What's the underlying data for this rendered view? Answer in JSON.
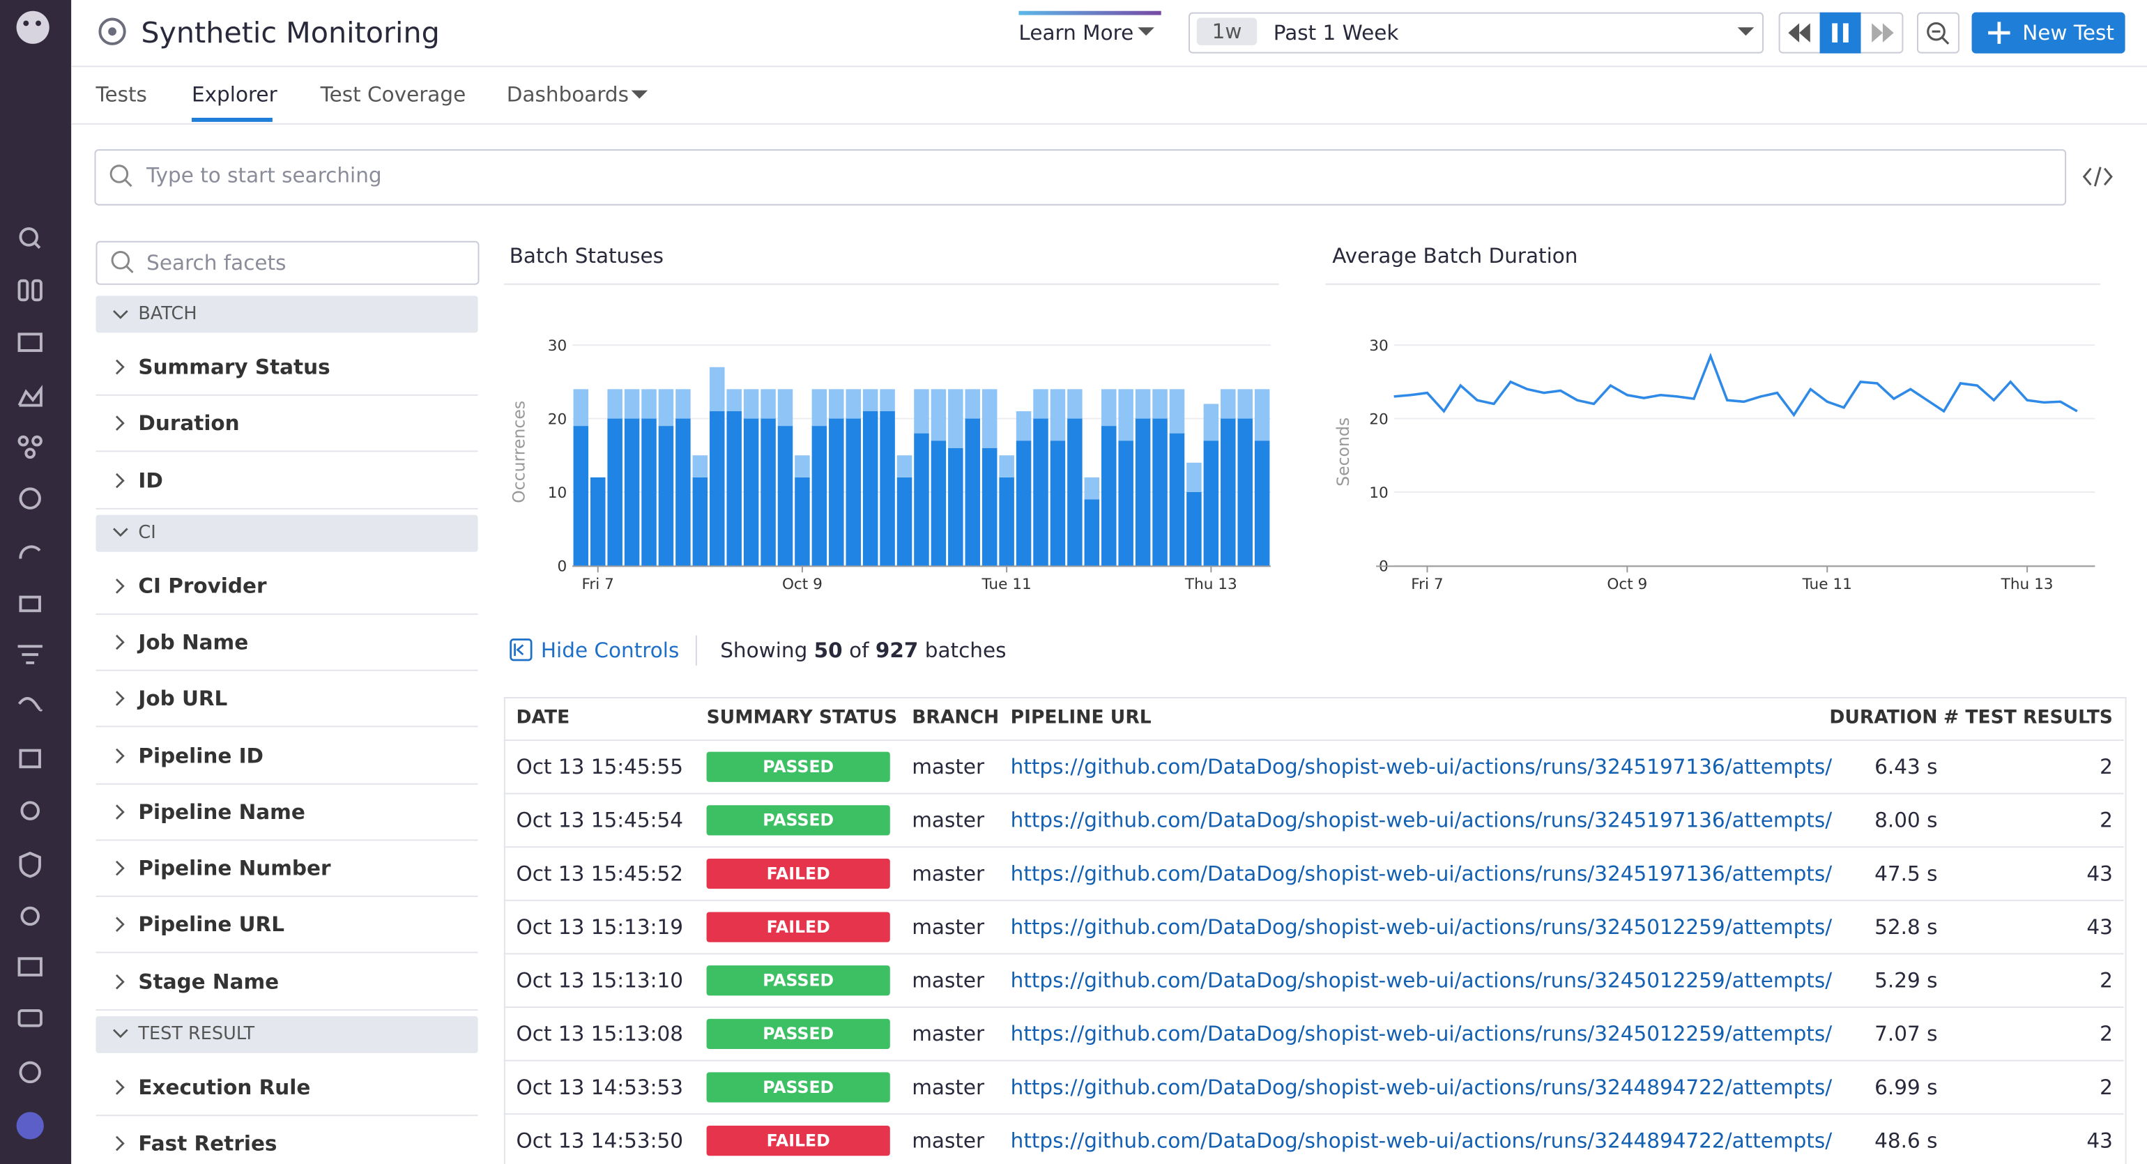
{
  "header": {
    "title": "Synthetic Monitoring",
    "learn_more": "Learn More",
    "time_short": "1w",
    "time_range": "Past 1 Week",
    "new_test": "New Test"
  },
  "tabs": [
    "Tests",
    "Explorer",
    "Test Coverage",
    "Dashboards"
  ],
  "search": {
    "placeholder": "Type to start searching"
  },
  "facets": {
    "placeholder": "Search facets",
    "groups": [
      {
        "name": "BATCH",
        "items": [
          "Summary Status",
          "Duration",
          "ID"
        ]
      },
      {
        "name": "CI",
        "items": [
          "CI Provider",
          "Job Name",
          "Job URL",
          "Pipeline ID",
          "Pipeline Name",
          "Pipeline Number",
          "Pipeline URL",
          "Stage Name"
        ]
      },
      {
        "name": "TEST RESULT",
        "items": [
          "Execution Rule",
          "Fast Retries"
        ]
      }
    ]
  },
  "chart_data": [
    {
      "type": "bar",
      "stacked": true,
      "title": "Batch Statuses",
      "y_label": "Occurrences",
      "categories": [
        null,
        "Fri 7",
        null,
        null,
        null,
        null,
        null,
        null,
        null,
        null,
        null,
        null,
        null,
        "Oct 9",
        null,
        null,
        null,
        null,
        null,
        null,
        null,
        null,
        null,
        null,
        null,
        "Tue 11",
        null,
        null,
        null,
        null,
        null,
        null,
        null,
        null,
        null,
        null,
        null,
        "Thu 13",
        null,
        null,
        null
      ],
      "series": [
        {
          "color": "#1f84e3",
          "values": [
            19,
            12,
            20,
            20,
            20,
            19,
            20,
            12,
            21,
            21,
            20,
            20,
            19,
            12,
            19,
            20,
            20,
            21,
            21,
            12,
            18,
            17,
            16,
            20,
            16,
            12,
            17,
            20,
            17,
            20,
            9,
            19,
            17,
            20,
            20,
            18,
            10,
            17,
            20,
            20,
            17
          ]
        },
        {
          "color": "#8ec5f6",
          "values": [
            5,
            0,
            4,
            4,
            4,
            5,
            4,
            3,
            6,
            3,
            4,
            4,
            5,
            3,
            5,
            4,
            4,
            3,
            3,
            3,
            6,
            7,
            8,
            4,
            8,
            3,
            4,
            4,
            7,
            4,
            3,
            5,
            7,
            4,
            4,
            6,
            4,
            5,
            4,
            4,
            7
          ]
        }
      ],
      "ylim": [
        0,
        30
      ],
      "yticks": [
        0,
        10,
        20,
        30
      ],
      "grid": true
    },
    {
      "type": "line",
      "title": "Average Batch Duration",
      "y_label": "Seconds",
      "categories": [
        null,
        null,
        "Fri 7",
        null,
        null,
        null,
        null,
        null,
        null,
        null,
        null,
        null,
        null,
        null,
        "Oct 9",
        null,
        null,
        null,
        null,
        null,
        null,
        null,
        null,
        null,
        null,
        null,
        "Tue 11",
        null,
        null,
        null,
        null,
        null,
        null,
        null,
        null,
        null,
        null,
        null,
        "Thu 13",
        null,
        null,
        null
      ],
      "series": [
        {
          "color": "#2e8ae6",
          "values": [
            23,
            23.2,
            23.5,
            21,
            24.5,
            22.5,
            22,
            25,
            24,
            23.5,
            23.8,
            22.5,
            22,
            24.5,
            23.2,
            22.8,
            23.2,
            23,
            22.7,
            28.5,
            22.5,
            22.3,
            23,
            23.5,
            20.5,
            24,
            22.3,
            21.5,
            25,
            24.8,
            22.7,
            24,
            22.5,
            21,
            24.8,
            24.5,
            22.5,
            25,
            22.5,
            22.2,
            22.3,
            21
          ]
        }
      ],
      "ylim": [
        0,
        30
      ],
      "yticks": [
        0,
        10,
        20,
        30
      ],
      "grid": true
    }
  ],
  "controls": {
    "hide": "Hide Controls",
    "showing": "Showing",
    "shown": 50,
    "of": "of",
    "total": 927,
    "unit": "batches"
  },
  "table": {
    "columns": [
      "DATE",
      "SUMMARY STATUS",
      "BRANCH",
      "PIPELINE URL",
      "DURATION",
      "# TEST RESULTS"
    ],
    "rows": [
      [
        "Oct 13 15:45:55",
        {
          "text": "PASSED",
          "color": "#3dbf63"
        },
        "master",
        "https://github.com/DataDog/shopist-web-ui/actions/runs/3245197136/attempts/",
        "6.43 s",
        2
      ],
      [
        "Oct 13 15:45:54",
        {
          "text": "PASSED",
          "color": "#3dbf63"
        },
        "master",
        "https://github.com/DataDog/shopist-web-ui/actions/runs/3245197136/attempts/",
        "8.00 s",
        2
      ],
      [
        "Oct 13 15:45:52",
        {
          "text": "FAILED",
          "color": "#e5344b"
        },
        "master",
        "https://github.com/DataDog/shopist-web-ui/actions/runs/3245197136/attempts/",
        "47.5 s",
        43
      ],
      [
        "Oct 13 15:13:19",
        {
          "text": "FAILED",
          "color": "#e5344b"
        },
        "master",
        "https://github.com/DataDog/shopist-web-ui/actions/runs/3245012259/attempts/",
        "52.8 s",
        43
      ],
      [
        "Oct 13 15:13:10",
        {
          "text": "PASSED",
          "color": "#3dbf63"
        },
        "master",
        "https://github.com/DataDog/shopist-web-ui/actions/runs/3245012259/attempts/",
        "5.29 s",
        2
      ],
      [
        "Oct 13 15:13:08",
        {
          "text": "PASSED",
          "color": "#3dbf63"
        },
        "master",
        "https://github.com/DataDog/shopist-web-ui/actions/runs/3245012259/attempts/",
        "7.07 s",
        2
      ],
      [
        "Oct 13 14:53:53",
        {
          "text": "PASSED",
          "color": "#3dbf63"
        },
        "master",
        "https://github.com/DataDog/shopist-web-ui/actions/runs/3244894722/attempts/",
        "6.99 s",
        2
      ],
      [
        "Oct 13 14:53:50",
        {
          "text": "FAILED",
          "color": "#e5344b"
        },
        "master",
        "https://github.com/DataDog/shopist-web-ui/actions/runs/3244894722/attempts/",
        "48.6 s",
        43
      ]
    ]
  }
}
